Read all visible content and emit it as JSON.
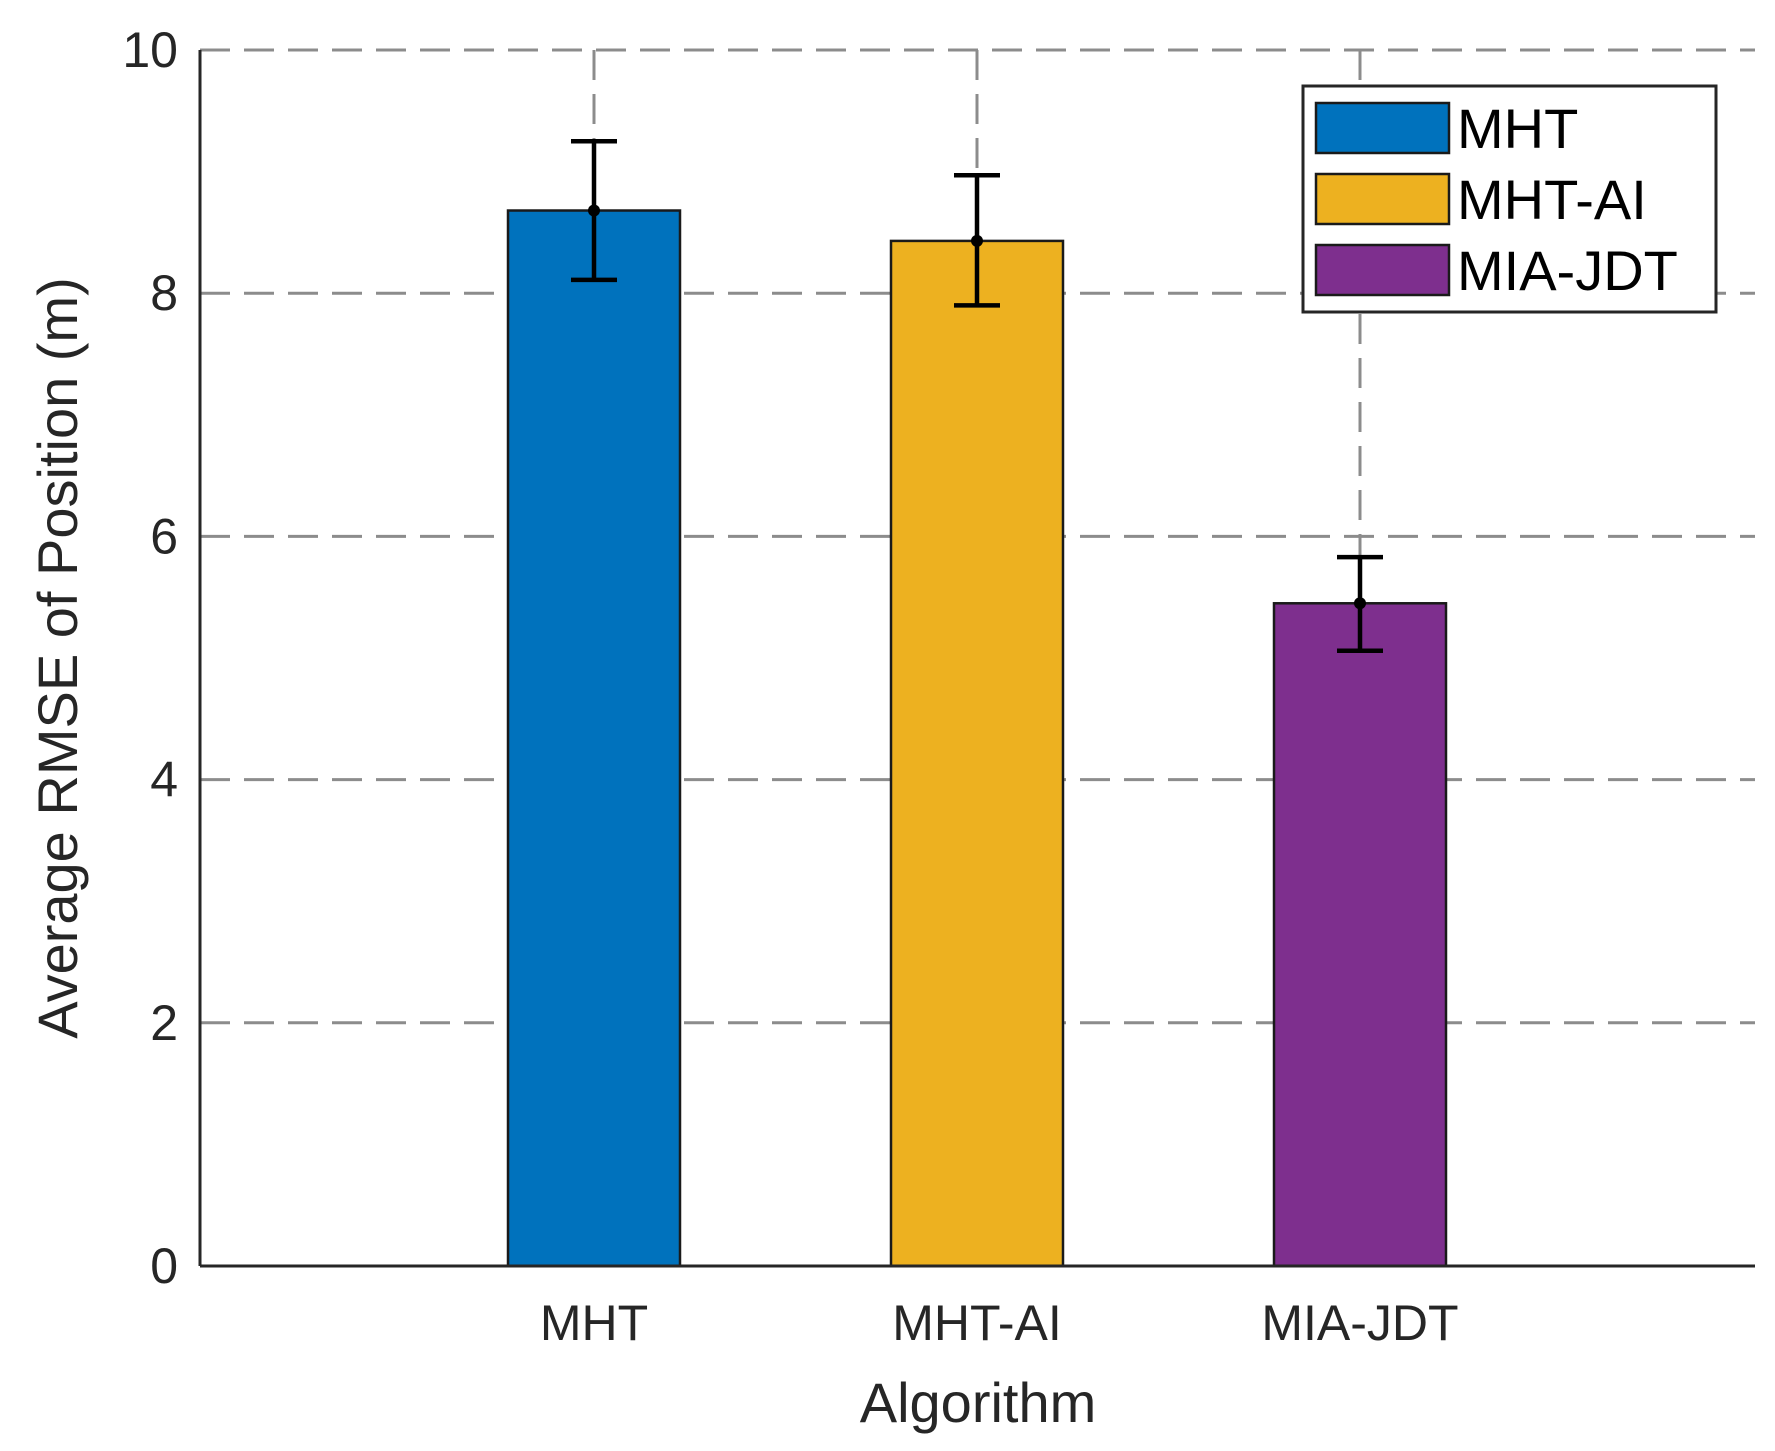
{
  "chart_data": {
    "type": "bar",
    "categories": [
      "MHT",
      "MHT-AI",
      "MIA-JDT"
    ],
    "values": [
      8.68,
      8.43,
      5.45
    ],
    "error_lower": [
      8.11,
      7.9,
      5.06
    ],
    "error_upper": [
      9.25,
      8.97,
      5.83
    ],
    "colors": [
      "#0072BD",
      "#EDB120",
      "#7E2F8E"
    ],
    "title": "",
    "xlabel": "Algorithm",
    "ylabel": "Average RMSE of Position (m)",
    "ylim": [
      0,
      10
    ],
    "yticks": [
      "0",
      "2",
      "4",
      "6",
      "8",
      "10"
    ],
    "grid": true,
    "legend": {
      "position": "top-right",
      "entries": [
        "MHT",
        "MHT-AI",
        "MIA-JDT"
      ]
    }
  }
}
